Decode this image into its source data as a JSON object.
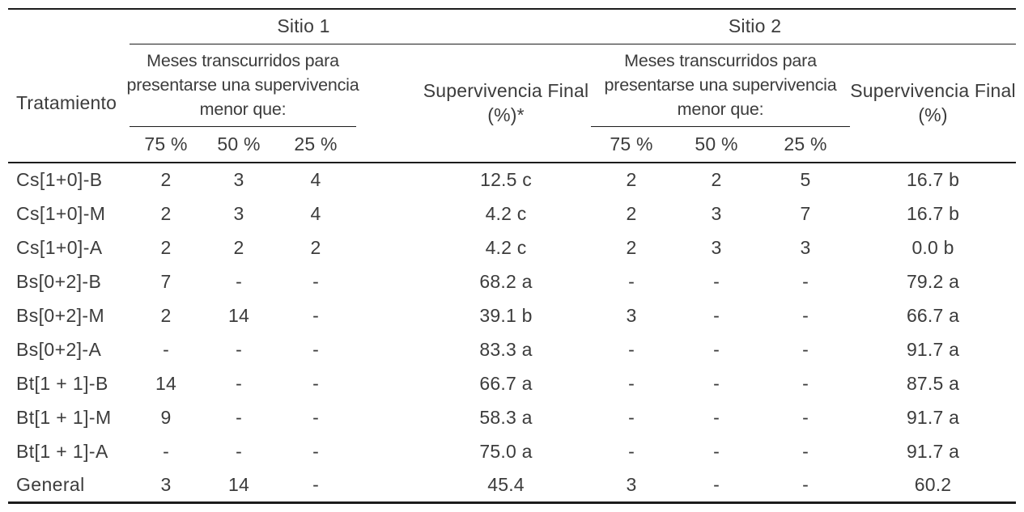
{
  "colors": {
    "background": "#ffffff",
    "text": "#3c3c3c",
    "rule": "#1c1c1c"
  },
  "table": {
    "treatment_header": "Tratamiento",
    "sites": [
      {
        "label": "Sitio 1",
        "months_line1": "Meses transcurridos para",
        "months_line2": "presentarse una supervivencia",
        "months_line3": "menor que:",
        "final_line1": "Supervivencia Final",
        "final_line2": "(%)*",
        "thresholds": [
          "75 %",
          "50 %",
          "25 %"
        ]
      },
      {
        "label": "Sitio 2",
        "months_line1": "Meses transcurridos para",
        "months_line2": "presentarse una supervivencia",
        "months_line3": "menor que:",
        "final_line1": "Supervivencia Final",
        "final_line2": "(%)",
        "thresholds": [
          "75 %",
          "50 %",
          "25 %"
        ]
      }
    ],
    "rows": [
      {
        "treatment": "Cs[1+0]-B",
        "cells": [
          "2",
          "3",
          "4",
          "12.5 c",
          "2",
          "2",
          "5",
          "16.7 b"
        ]
      },
      {
        "treatment": "Cs[1+0]-M",
        "cells": [
          "2",
          "3",
          "4",
          "4.2 c",
          "2",
          "3",
          "7",
          "16.7 b"
        ]
      },
      {
        "treatment": "Cs[1+0]-A",
        "cells": [
          "2",
          "2",
          "2",
          "4.2 c",
          "2",
          "3",
          "3",
          "0.0 b"
        ]
      },
      {
        "treatment": "Bs[0+2]-B",
        "cells": [
          "7",
          "-",
          "-",
          "68.2 a",
          "-",
          "-",
          "-",
          "79.2 a"
        ]
      },
      {
        "treatment": "Bs[0+2]-M",
        "cells": [
          "2",
          "14",
          "-",
          "39.1 b",
          "3",
          "-",
          "-",
          "66.7 a"
        ]
      },
      {
        "treatment": "Bs[0+2]-A",
        "cells": [
          "-",
          "-",
          "-",
          "83.3 a",
          "-",
          "-",
          "-",
          "91.7 a"
        ]
      },
      {
        "treatment": "Bt[1 + 1]-B",
        "cells": [
          "14",
          "-",
          "-",
          "66.7 a",
          "-",
          "-",
          "-",
          "87.5 a"
        ]
      },
      {
        "treatment": "Bt[1 + 1]-M",
        "cells": [
          "9",
          "-",
          "-",
          "58.3 a",
          "-",
          "-",
          "-",
          "91.7 a"
        ]
      },
      {
        "treatment": "Bt[1 + 1]-A",
        "cells": [
          "-",
          "-",
          "-",
          "75.0 a",
          "-",
          "-",
          "-",
          "91.7 a"
        ]
      },
      {
        "treatment": "General",
        "cells": [
          "3",
          "14",
          "-",
          "45.4",
          "3",
          "-",
          "-",
          "60.2"
        ]
      }
    ]
  }
}
